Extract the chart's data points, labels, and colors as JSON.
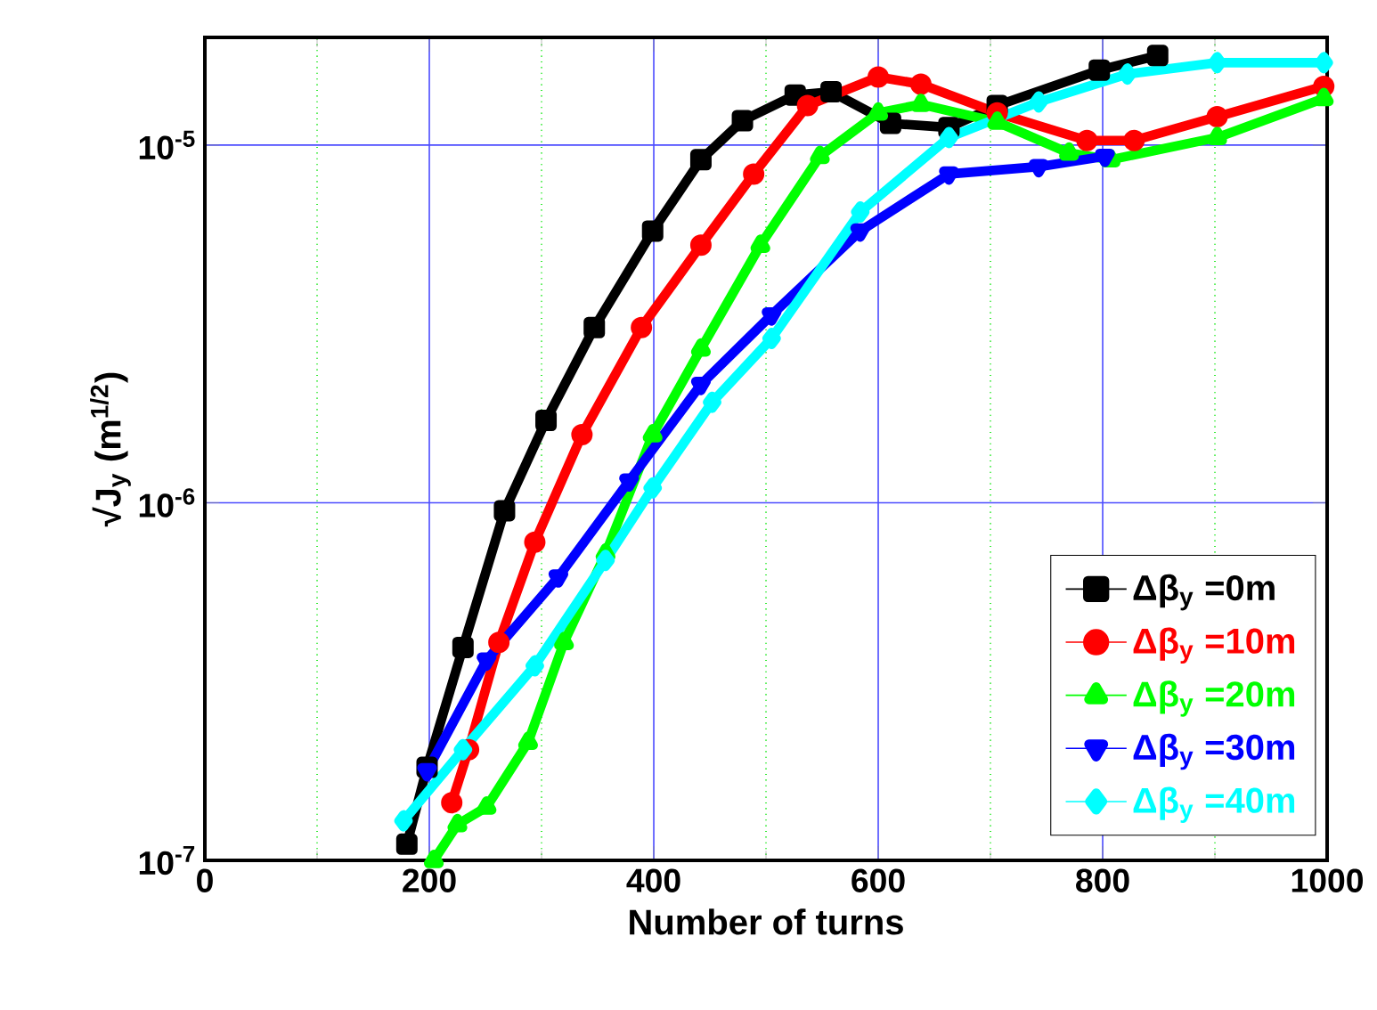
{
  "chart_data": {
    "type": "line",
    "xlabel": "Number of turns",
    "ylabel": "√J$_{y}$ (m$^{1/2}$)",
    "log": "y",
    "grid": true,
    "legend": "bottom right",
    "line_style": "solid",
    "xlim": [
      0,
      1000
    ],
    "xticks": [
      0,
      {
        "value": 100,
        "label": null
      },
      200,
      {
        "value": 300,
        "label": null
      },
      400,
      {
        "value": 500,
        "label": null
      },
      600,
      {
        "value": 700,
        "label": null
      },
      800,
      {
        "value": 900,
        "label": null
      },
      1000
    ],
    "ylim": [
      1e-07,
      2e-05
    ],
    "yticks": [
      {
        "value": 1e-07,
        "label": "10$^{-7}$"
      },
      {
        "value": 1e-06,
        "label": "10$^{-6}$"
      },
      {
        "value": 1e-05,
        "label": "10$^{-5}$"
      }
    ],
    "series": [
      {
        "name": "Δβ$_{y}$ =0m",
        "color": "#000000",
        "marker": "square",
        "x": [
          180,
          198,
          230,
          267,
          304,
          347,
          399,
          442,
          479,
          526,
          558,
          611,
          663,
          706,
          797,
          849
        ],
        "values": [
          1.11e-07,
          1.82e-07,
          3.94e-07,
          9.5e-07,
          1.7e-06,
          3.09e-06,
          5.75e-06,
          9.1e-06,
          1.17e-05,
          1.38e-05,
          1.41e-05,
          1.15e-05,
          1.12e-05,
          1.29e-05,
          1.62e-05,
          1.78e-05
        ]
      },
      {
        "name": "Δβ$_{y}$ =10m",
        "color": "#ff0000",
        "marker": "circle",
        "x": [
          220,
          235,
          262,
          294,
          336,
          389,
          442,
          489,
          537,
          600,
          638,
          706,
          786,
          828,
          902,
          997
        ],
        "values": [
          1.45e-07,
          2.04e-07,
          4.07e-07,
          7.76e-07,
          1.55e-06,
          3.09e-06,
          5.25e-06,
          8.3e-06,
          1.29e-05,
          1.55e-05,
          1.48e-05,
          1.23e-05,
          1.03e-05,
          1.03e-05,
          1.2e-05,
          1.46e-05
        ]
      },
      {
        "name": "Δβ$_{y}$ =20m",
        "color": "#00ff00",
        "marker": "triangle",
        "x": [
          204,
          225,
          251,
          288,
          320,
          357,
          399,
          442,
          495,
          548,
          600,
          638,
          706,
          770,
          807,
          902,
          997
        ],
        "values": [
          1e-07,
          1.26e-07,
          1.41e-07,
          2.14e-07,
          4.07e-07,
          7.2e-07,
          1.55e-06,
          2.69e-06,
          5.25e-06,
          9.3e-06,
          1.23e-05,
          1.3e-05,
          1.16e-05,
          9.5e-06,
          9.1e-06,
          1.05e-05,
          1.35e-05
        ]
      },
      {
        "name": "Δβ$_{y}$ =30m",
        "color": "#0000ff",
        "marker": "triangle down",
        "x": [
          198,
          251,
          315,
          378,
          442,
          505,
          584,
          663,
          743,
          802
        ],
        "values": [
          1.78e-07,
          3.63e-07,
          6.2e-07,
          1.15e-06,
          2.14e-06,
          3.35e-06,
          5.75e-06,
          8.3e-06,
          8.7e-06,
          9.3e-06
        ]
      },
      {
        "name": "Δβ$_{y}$ =40m",
        "color": "#00ffff",
        "marker": "diamond",
        "x": [
          177,
          230,
          294,
          357,
          399,
          452,
          505,
          584,
          663,
          743,
          822,
          902,
          997
        ],
        "values": [
          1.29e-07,
          2.04e-07,
          3.5e-07,
          6.9e-07,
          1.1e-06,
          1.91e-06,
          2.88e-06,
          6.5e-06,
          1.05e-05,
          1.32e-05,
          1.58e-05,
          1.7e-05,
          1.7e-05
        ]
      }
    ]
  }
}
